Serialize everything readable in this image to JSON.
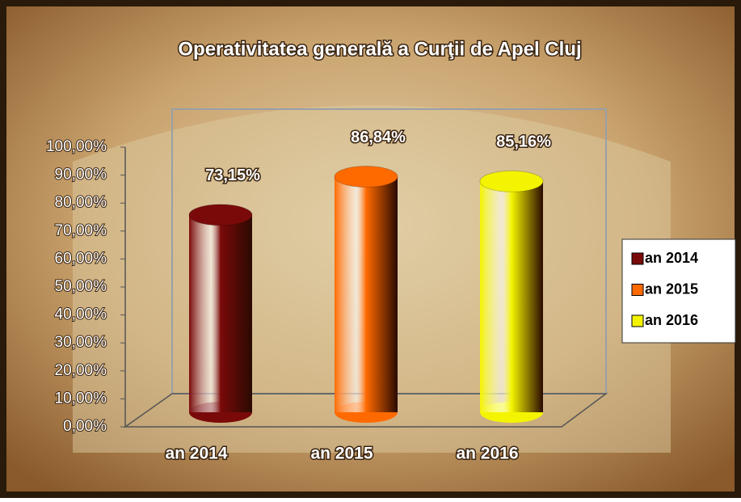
{
  "chart_data": {
    "type": "bar3d",
    "title": "Operativitatea generală a Curţii de Apel Cluj",
    "categories": [
      "an 2014",
      "an 2015",
      "an 2016"
    ],
    "values": [
      73.15,
      86.84,
      85.16
    ],
    "value_labels": [
      "73,15%",
      "86,84%",
      "85,16%"
    ],
    "colors": [
      "#7a0a0a",
      "#ff6a00",
      "#f4f400"
    ],
    "ylim": [
      0,
      100
    ],
    "yticks": [
      {
        "value": 0,
        "label": "0,00%"
      },
      {
        "value": 10,
        "label": "10,00%"
      },
      {
        "value": 20,
        "label": "20,00%"
      },
      {
        "value": 30,
        "label": "30,00%"
      },
      {
        "value": 40,
        "label": "40,00%"
      },
      {
        "value": 50,
        "label": "50,00%"
      },
      {
        "value": 60,
        "label": "60,00%"
      },
      {
        "value": 70,
        "label": "70,00%"
      },
      {
        "value": 80,
        "label": "80,00%"
      },
      {
        "value": 90,
        "label": "90,00%"
      },
      {
        "value": 100,
        "label": "100,00%"
      }
    ],
    "legend": "right"
  }
}
